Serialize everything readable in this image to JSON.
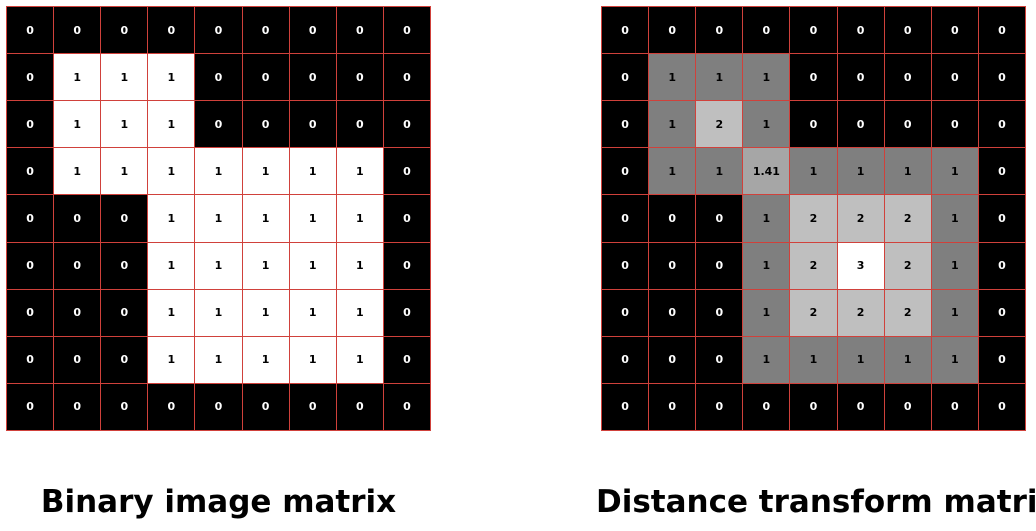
{
  "colors": {
    "grid_line": "#d0413b",
    "level_0": "#000000",
    "level_1_binary": "#ffffff",
    "level_1": "#7f7f7f",
    "level_1_41": "#a6a6a6",
    "level_2": "#bfbfbf",
    "level_3": "#ffffff"
  },
  "binary_matrix": {
    "caption": "Binary image matrix",
    "rows": [
      [
        "0",
        "0",
        "0",
        "0",
        "0",
        "0",
        "0",
        "0",
        "0"
      ],
      [
        "0",
        "1",
        "1",
        "1",
        "0",
        "0",
        "0",
        "0",
        "0"
      ],
      [
        "0",
        "1",
        "1",
        "1",
        "0",
        "0",
        "0",
        "0",
        "0"
      ],
      [
        "0",
        "1",
        "1",
        "1",
        "1",
        "1",
        "1",
        "1",
        "0"
      ],
      [
        "0",
        "0",
        "0",
        "1",
        "1",
        "1",
        "1",
        "1",
        "0"
      ],
      [
        "0",
        "0",
        "0",
        "1",
        "1",
        "1",
        "1",
        "1",
        "0"
      ],
      [
        "0",
        "0",
        "0",
        "1",
        "1",
        "1",
        "1",
        "1",
        "0"
      ],
      [
        "0",
        "0",
        "0",
        "1",
        "1",
        "1",
        "1",
        "1",
        "0"
      ],
      [
        "0",
        "0",
        "0",
        "0",
        "0",
        "0",
        "0",
        "0",
        "0"
      ]
    ]
  },
  "distance_matrix": {
    "caption": "Distance transform matrix",
    "rows": [
      [
        "0",
        "0",
        "0",
        "0",
        "0",
        "0",
        "0",
        "0",
        "0"
      ],
      [
        "0",
        "1",
        "1",
        "1",
        "0",
        "0",
        "0",
        "0",
        "0"
      ],
      [
        "0",
        "1",
        "2",
        "1",
        "0",
        "0",
        "0",
        "0",
        "0"
      ],
      [
        "0",
        "1",
        "1",
        "1.41",
        "1",
        "1",
        "1",
        "1",
        "0"
      ],
      [
        "0",
        "0",
        "0",
        "1",
        "2",
        "2",
        "2",
        "1",
        "0"
      ],
      [
        "0",
        "0",
        "0",
        "1",
        "2",
        "3",
        "2",
        "1",
        "0"
      ],
      [
        "0",
        "0",
        "0",
        "1",
        "2",
        "2",
        "2",
        "1",
        "0"
      ],
      [
        "0",
        "0",
        "0",
        "1",
        "1",
        "1",
        "1",
        "1",
        "0"
      ],
      [
        "0",
        "0",
        "0",
        "0",
        "0",
        "0",
        "0",
        "0",
        "0"
      ]
    ]
  }
}
